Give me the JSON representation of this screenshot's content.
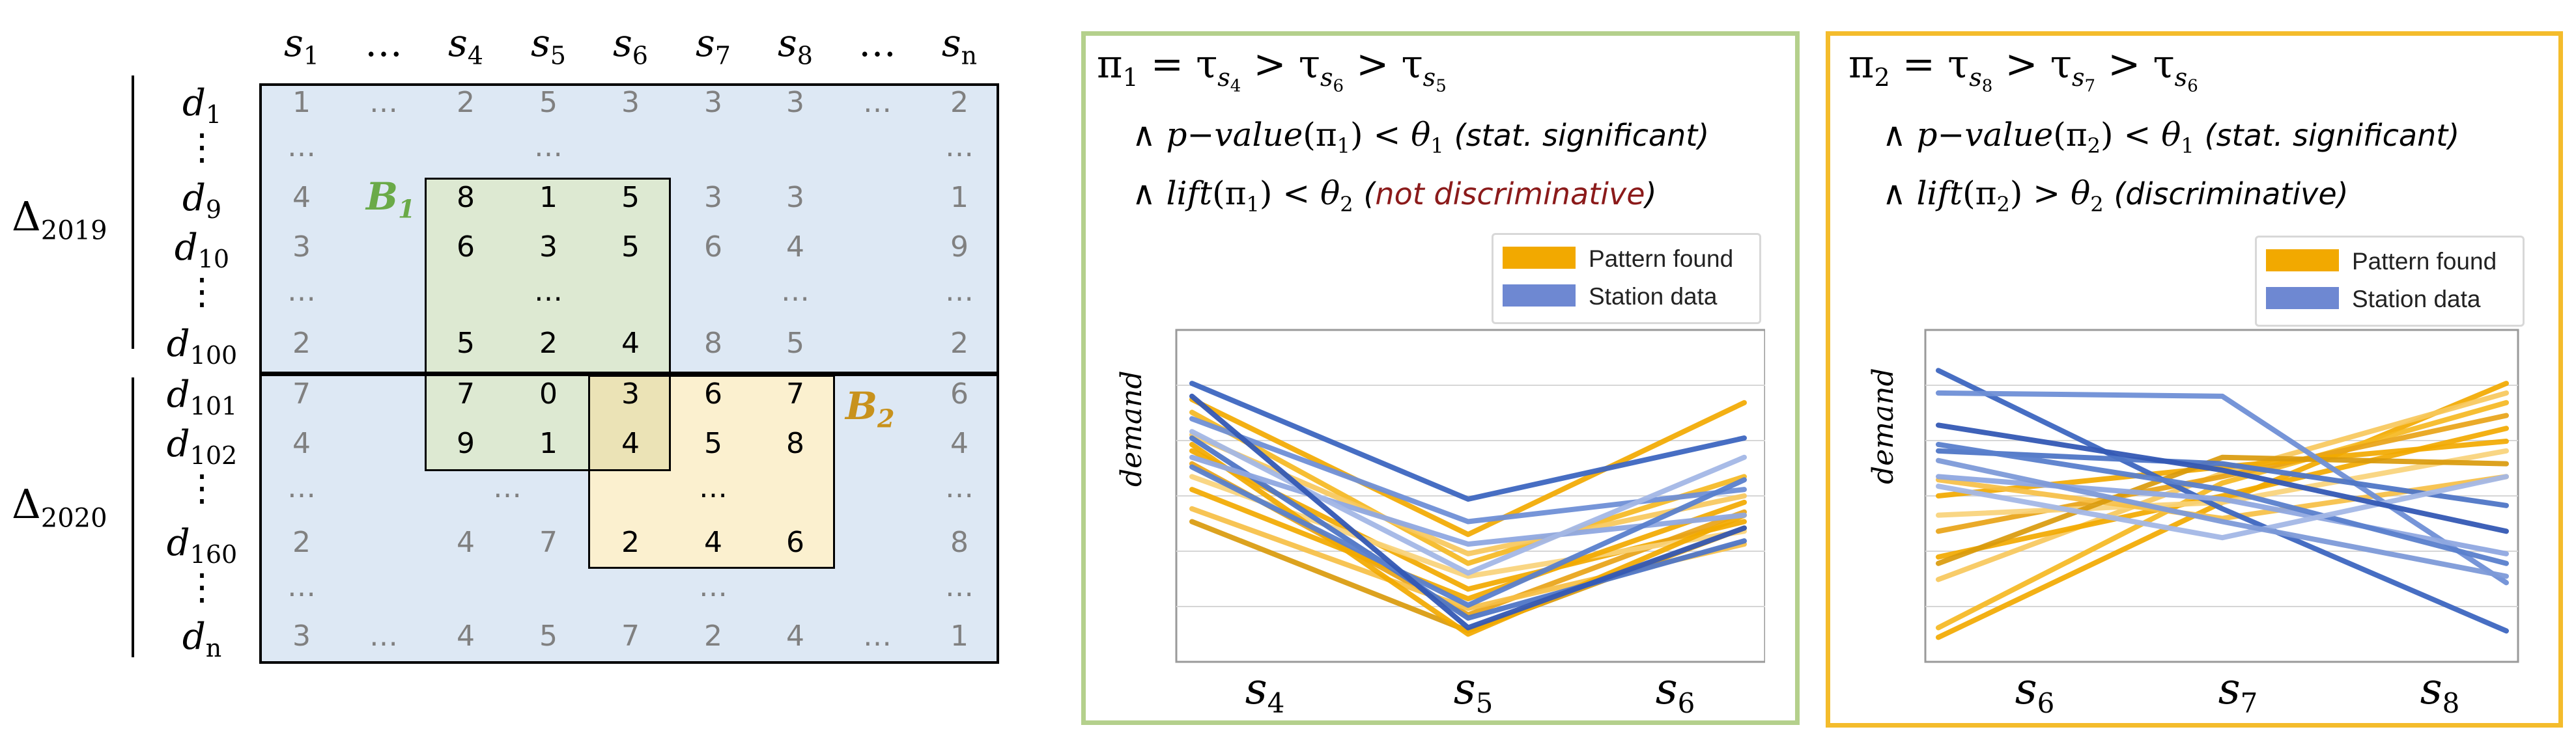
{
  "matrix": {
    "col_headers": [
      "s",
      "…",
      "s",
      "s",
      "s",
      "s",
      "s",
      "…",
      "s"
    ],
    "col_subs": [
      "1",
      "",
      "4",
      "5",
      "6",
      "7",
      "8",
      "",
      "n"
    ],
    "row_headers": [
      {
        "base": "d",
        "sub": "1"
      },
      {
        "base": "⋮",
        "sub": ""
      },
      {
        "base": "d",
        "sub": "9"
      },
      {
        "base": "d",
        "sub": "10"
      },
      {
        "base": "⋮",
        "sub": ""
      },
      {
        "base": "d",
        "sub": "100"
      },
      {
        "base": "d",
        "sub": "101"
      },
      {
        "base": "d",
        "sub": "102"
      },
      {
        "base": "⋮",
        "sub": ""
      },
      {
        "base": "d",
        "sub": "160"
      },
      {
        "base": "⋮",
        "sub": ""
      },
      {
        "base": "d",
        "sub": "n"
      }
    ],
    "group_2019": {
      "base": "Δ",
      "sub": "2019"
    },
    "group_2020": {
      "base": "Δ",
      "sub": "2020"
    },
    "rows": [
      [
        "1",
        "…",
        "2",
        "5",
        "3",
        "3",
        "3",
        "…",
        "2"
      ],
      [
        "…",
        "",
        "",
        "…",
        "",
        "",
        "",
        "",
        "…"
      ],
      [
        "4",
        "",
        "8",
        "1",
        "5",
        "3",
        "3",
        "",
        "1"
      ],
      [
        "3",
        "",
        "6",
        "3",
        "5",
        "6",
        "4",
        "",
        "9"
      ],
      [
        "…",
        "",
        "",
        "…",
        "",
        "",
        "…",
        "",
        "…"
      ],
      [
        "2",
        "",
        "5",
        "2",
        "4",
        "8",
        "5",
        "",
        "2"
      ],
      [
        "7",
        "",
        "7",
        "0",
        "3",
        "6",
        "7",
        "",
        "6"
      ],
      [
        "4",
        "",
        "9",
        "1",
        "4",
        "5",
        "8",
        "",
        "4"
      ],
      [
        "…",
        "",
        "",
        "…",
        "",
        "…",
        "",
        "",
        "…"
      ],
      [
        "2",
        "",
        "4",
        "7",
        "2",
        "4",
        "6",
        "",
        "8"
      ],
      [
        "…",
        "",
        "",
        "",
        "",
        "…",
        "",
        "",
        "…"
      ],
      [
        "3",
        "…",
        "4",
        "5",
        "7",
        "2",
        "4",
        "…",
        "1"
      ]
    ],
    "bicluster_1": {
      "base": "B",
      "sub": "1"
    },
    "bicluster_2": {
      "base": "B",
      "sub": "2"
    }
  },
  "panel_1": {
    "title": {
      "lhs": "π",
      "lhs_sub": "1",
      "eq": "=",
      "t1_sub": "4",
      "t2_sub": "6",
      "t3_sub": "5",
      "tau": "τ",
      "s": "s",
      "gt": ">"
    },
    "cond1": {
      "and": "∧",
      "func": "p−value",
      "arg": "π",
      "arg_sub": "1",
      "op": "<",
      "theta": "θ",
      "theta_sub": "1",
      "note": "(stat. significant)"
    },
    "cond2": {
      "and": "∧",
      "func": "lift",
      "arg": "π",
      "arg_sub": "1",
      "op": "<",
      "theta": "θ",
      "theta_sub": "2",
      "note_open": "(",
      "note": "not discriminative",
      "note_close": ")"
    },
    "legend": [
      "Pattern found",
      "Station data"
    ],
    "ylabel": "demand",
    "xticks": [
      {
        "base": "s",
        "sub": "4"
      },
      {
        "base": "s",
        "sub": "5"
      },
      {
        "base": "s",
        "sub": "6"
      }
    ]
  },
  "panel_2": {
    "title": {
      "lhs": "π",
      "lhs_sub": "2",
      "eq": "=",
      "t1_sub": "8",
      "t2_sub": "7",
      "t3_sub": "6",
      "tau": "τ",
      "s": "s",
      "gt": ">"
    },
    "cond1": {
      "and": "∧",
      "func": "p−value",
      "arg": "π",
      "arg_sub": "2",
      "op": "<",
      "theta": "θ",
      "theta_sub": "1",
      "note": "(stat. significant)"
    },
    "cond2": {
      "and": "∧",
      "func": "lift",
      "arg": "π",
      "arg_sub": "2",
      "op": ">",
      "theta": "θ",
      "theta_sub": "2",
      "note": "(discriminative)"
    },
    "legend": [
      "Pattern found",
      "Station data"
    ],
    "ylabel": "demand",
    "xticks": [
      {
        "base": "s",
        "sub": "6"
      },
      {
        "base": "s",
        "sub": "7"
      },
      {
        "base": "s",
        "sub": "8"
      }
    ]
  },
  "colors": {
    "matrix_bg": "#dde8f4",
    "b1_fill": "#dde9d2",
    "b2_fill": "#fbf0cf",
    "overlap_fill": "#ebe3b6",
    "b1_label": "#6aaa48",
    "b2_label": "#c8921c",
    "panel1_border": "#b4d08c",
    "panel2_border": "#f4bc2c",
    "pattern": "#f2a900",
    "station": "#4f76c6",
    "not_disc": "#8b1a1a"
  },
  "chart_data": [
    {
      "type": "line",
      "title": "",
      "xlabel": "",
      "ylabel": "demand",
      "categories": [
        "s4",
        "s5",
        "s6"
      ],
      "ylim": [
        0,
        10
      ],
      "legend": [
        "Pattern found",
        "Station data"
      ],
      "series": [
        {
          "name": "Pattern found",
          "values": [
            8.0,
            3.8,
            7.9
          ]
        },
        {
          "name": "Pattern found",
          "values": [
            7.6,
            2.9,
            5.6
          ]
        },
        {
          "name": "Pattern found",
          "values": [
            6.9,
            3.2,
            5.0
          ]
        },
        {
          "name": "Pattern found",
          "values": [
            6.4,
            2.1,
            4.2
          ]
        },
        {
          "name": "Pattern found",
          "values": [
            6.0,
            1.3,
            4.5
          ]
        },
        {
          "name": "Pattern found",
          "values": [
            5.6,
            2.5,
            3.9
          ]
        },
        {
          "name": "Pattern found",
          "values": [
            5.2,
            1.8,
            4.8
          ]
        },
        {
          "name": "Pattern found",
          "values": [
            4.6,
            1.5,
            3.5
          ]
        },
        {
          "name": "Pattern found",
          "values": [
            4.2,
            0.8,
            4.0
          ]
        },
        {
          "name": "Pattern found",
          "values": [
            6.6,
            0.7,
            4.4
          ]
        },
        {
          "name": "Station data",
          "values": [
            8.5,
            4.9,
            6.8
          ]
        },
        {
          "name": "Station data",
          "values": [
            7.4,
            4.2,
            5.2
          ]
        },
        {
          "name": "Station data",
          "values": [
            6.8,
            1.2,
            3.6
          ]
        },
        {
          "name": "Station data",
          "values": [
            6.2,
            3.5,
            4.4
          ]
        },
        {
          "name": "Station data",
          "values": [
            5.9,
            1.6,
            5.5
          ]
        },
        {
          "name": "Station data",
          "values": [
            7.0,
            2.6,
            6.2
          ]
        },
        {
          "name": "Station data",
          "values": [
            8.1,
            0.9,
            4.0
          ]
        }
      ]
    },
    {
      "type": "line",
      "title": "",
      "xlabel": "",
      "ylabel": "demand",
      "categories": [
        "s6",
        "s7",
        "s8"
      ],
      "ylim": [
        0,
        10
      ],
      "legend": [
        "Pattern found",
        "Station data"
      ],
      "series": [
        {
          "name": "Pattern found",
          "values": [
            0.6,
            4.8,
            8.5
          ]
        },
        {
          "name": "Pattern found",
          "values": [
            0.9,
            5.4,
            7.9
          ]
        },
        {
          "name": "Pattern found",
          "values": [
            2.4,
            5.7,
            8.2
          ]
        },
        {
          "name": "Pattern found",
          "values": [
            3.1,
            5.0,
            7.1
          ]
        },
        {
          "name": "Pattern found",
          "values": [
            3.9,
            5.6,
            7.5
          ]
        },
        {
          "name": "Pattern found",
          "values": [
            4.4,
            4.8,
            6.4
          ]
        },
        {
          "name": "Pattern found",
          "values": [
            5.0,
            5.9,
            6.7
          ]
        },
        {
          "name": "Pattern found",
          "values": [
            5.5,
            4.3,
            5.6
          ]
        },
        {
          "name": "Pattern found",
          "values": [
            2.9,
            6.2,
            6.0
          ]
        },
        {
          "name": "Station data",
          "values": [
            8.9,
            4.6,
            0.8
          ]
        },
        {
          "name": "Station data",
          "values": [
            8.2,
            8.1,
            2.3
          ]
        },
        {
          "name": "Station data",
          "values": [
            6.4,
            6.0,
            4.7
          ]
        },
        {
          "name": "Station data",
          "values": [
            5.6,
            4.9,
            3.2
          ]
        },
        {
          "name": "Station data",
          "values": [
            6.6,
            5.2,
            2.9
          ]
        },
        {
          "name": "Station data",
          "values": [
            5.3,
            3.7,
            5.6
          ]
        },
        {
          "name": "Station data",
          "values": [
            7.2,
            5.8,
            3.9
          ]
        },
        {
          "name": "Station data",
          "values": [
            6.1,
            4.2,
            2.5
          ]
        }
      ]
    }
  ]
}
